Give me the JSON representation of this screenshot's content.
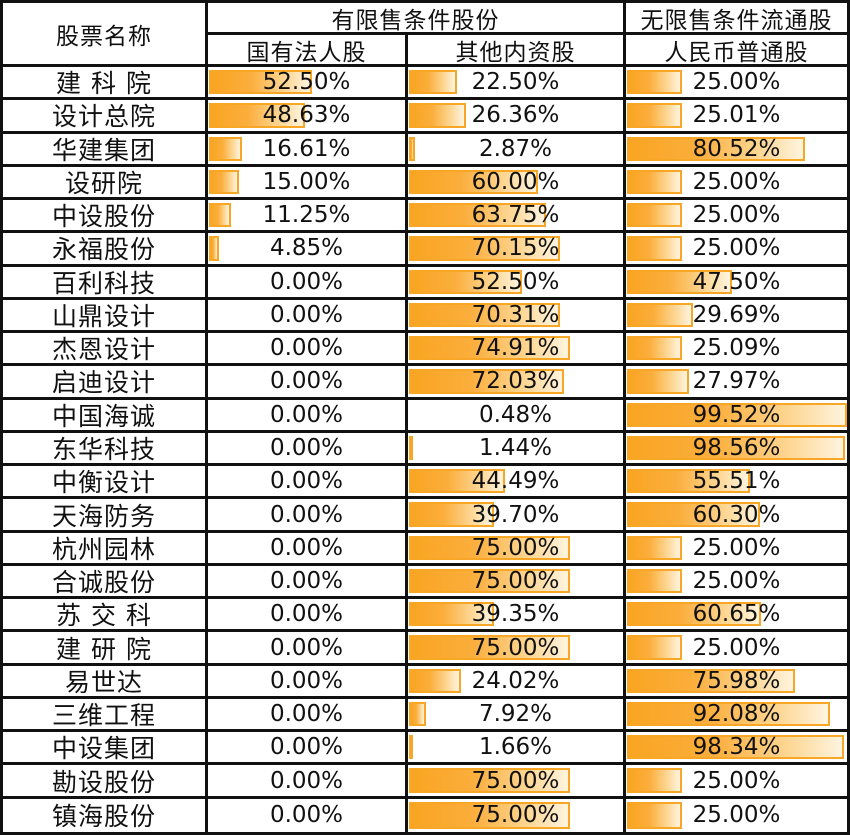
{
  "header": {
    "stock_name": "股票名称",
    "restricted_group": "有限售条件股份",
    "unrestricted_group": "无限售条件流通股",
    "state_legal_person": "国有法人股",
    "other_domestic": "其他内资股",
    "rmb_ordinary": "人民币普通股"
  },
  "colors": {
    "bar_border": "#F8A625",
    "bar_fill_left": "#F9A522",
    "bar_fill_right": "#FEF4DF",
    "grid_line": "#111111",
    "text": "#111111"
  },
  "chart_data": {
    "type": "table",
    "title": "",
    "columns": [
      "股票名称",
      "国有法人股",
      "其他内资股",
      "人民币普通股"
    ],
    "column_groups": [
      "有限售条件股份",
      "无限售条件流通股"
    ],
    "bar_style": "gradient-data-bar",
    "value_axis_max": 100,
    "rows": [
      {
        "name": "建 科 院",
        "values": [
          52.5,
          22.5,
          25.0
        ],
        "labels": [
          "52.50%",
          "22.50%",
          "25.00%"
        ]
      },
      {
        "name": "设计总院",
        "values": [
          48.63,
          26.36,
          25.01
        ],
        "labels": [
          "48.63%",
          "26.36%",
          "25.01%"
        ]
      },
      {
        "name": "华建集团",
        "values": [
          16.61,
          2.87,
          80.52
        ],
        "labels": [
          "16.61%",
          "2.87%",
          "80.52%"
        ]
      },
      {
        "name": "设研院",
        "values": [
          15.0,
          60.0,
          25.0
        ],
        "labels": [
          "15.00%",
          "60.00%",
          "25.00%"
        ]
      },
      {
        "name": "中设股份",
        "values": [
          11.25,
          63.75,
          25.0
        ],
        "labels": [
          "11.25%",
          "63.75%",
          "25.00%"
        ]
      },
      {
        "name": "永福股份",
        "values": [
          4.85,
          70.15,
          25.0
        ],
        "labels": [
          "4.85%",
          "70.15%",
          "25.00%"
        ]
      },
      {
        "name": "百利科技",
        "values": [
          0.0,
          52.5,
          47.5
        ],
        "labels": [
          "0.00%",
          "52.50%",
          "47.50%"
        ]
      },
      {
        "name": "山鼎设计",
        "values": [
          0.0,
          70.31,
          29.69
        ],
        "labels": [
          "0.00%",
          "70.31%",
          "29.69%"
        ]
      },
      {
        "name": "杰恩设计",
        "values": [
          0.0,
          74.91,
          25.09
        ],
        "labels": [
          "0.00%",
          "74.91%",
          "25.09%"
        ]
      },
      {
        "name": "启迪设计",
        "values": [
          0.0,
          72.03,
          27.97
        ],
        "labels": [
          "0.00%",
          "72.03%",
          "27.97%"
        ]
      },
      {
        "name": "中国海诚",
        "values": [
          0.0,
          0.48,
          99.52
        ],
        "labels": [
          "0.00%",
          "0.48%",
          "99.52%"
        ]
      },
      {
        "name": "东华科技",
        "values": [
          0.0,
          1.44,
          98.56
        ],
        "labels": [
          "0.00%",
          "1.44%",
          "98.56%"
        ]
      },
      {
        "name": "中衡设计",
        "values": [
          0.0,
          44.49,
          55.51
        ],
        "labels": [
          "0.00%",
          "44.49%",
          "55.51%"
        ]
      },
      {
        "name": "天海防务",
        "values": [
          0.0,
          39.7,
          60.3
        ],
        "labels": [
          "0.00%",
          "39.70%",
          "60.30%"
        ]
      },
      {
        "name": "杭州园林",
        "values": [
          0.0,
          75.0,
          25.0
        ],
        "labels": [
          "0.00%",
          "75.00%",
          "25.00%"
        ]
      },
      {
        "name": "合诚股份",
        "values": [
          0.0,
          75.0,
          25.0
        ],
        "labels": [
          "0.00%",
          "75.00%",
          "25.00%"
        ]
      },
      {
        "name": "苏 交 科",
        "values": [
          0.0,
          39.35,
          60.65
        ],
        "labels": [
          "0.00%",
          "39.35%",
          "60.65%"
        ]
      },
      {
        "name": "建 研 院",
        "values": [
          0.0,
          75.0,
          25.0
        ],
        "labels": [
          "0.00%",
          "75.00%",
          "25.00%"
        ]
      },
      {
        "name": "易世达",
        "values": [
          0.0,
          24.02,
          75.98
        ],
        "labels": [
          "0.00%",
          "24.02%",
          "75.98%"
        ]
      },
      {
        "name": "三维工程",
        "values": [
          0.0,
          7.92,
          92.08
        ],
        "labels": [
          "0.00%",
          "7.92%",
          "92.08%"
        ]
      },
      {
        "name": "中设集团",
        "values": [
          0.0,
          1.66,
          98.34
        ],
        "labels": [
          "0.00%",
          "1.66%",
          "98.34%"
        ]
      },
      {
        "name": "勘设股份",
        "values": [
          0.0,
          75.0,
          25.0
        ],
        "labels": [
          "0.00%",
          "75.00%",
          "25.00%"
        ]
      },
      {
        "name": "镇海股份",
        "values": [
          0.0,
          75.0,
          25.0
        ],
        "labels": [
          "0.00%",
          "75.00%",
          "25.00%"
        ]
      }
    ]
  }
}
